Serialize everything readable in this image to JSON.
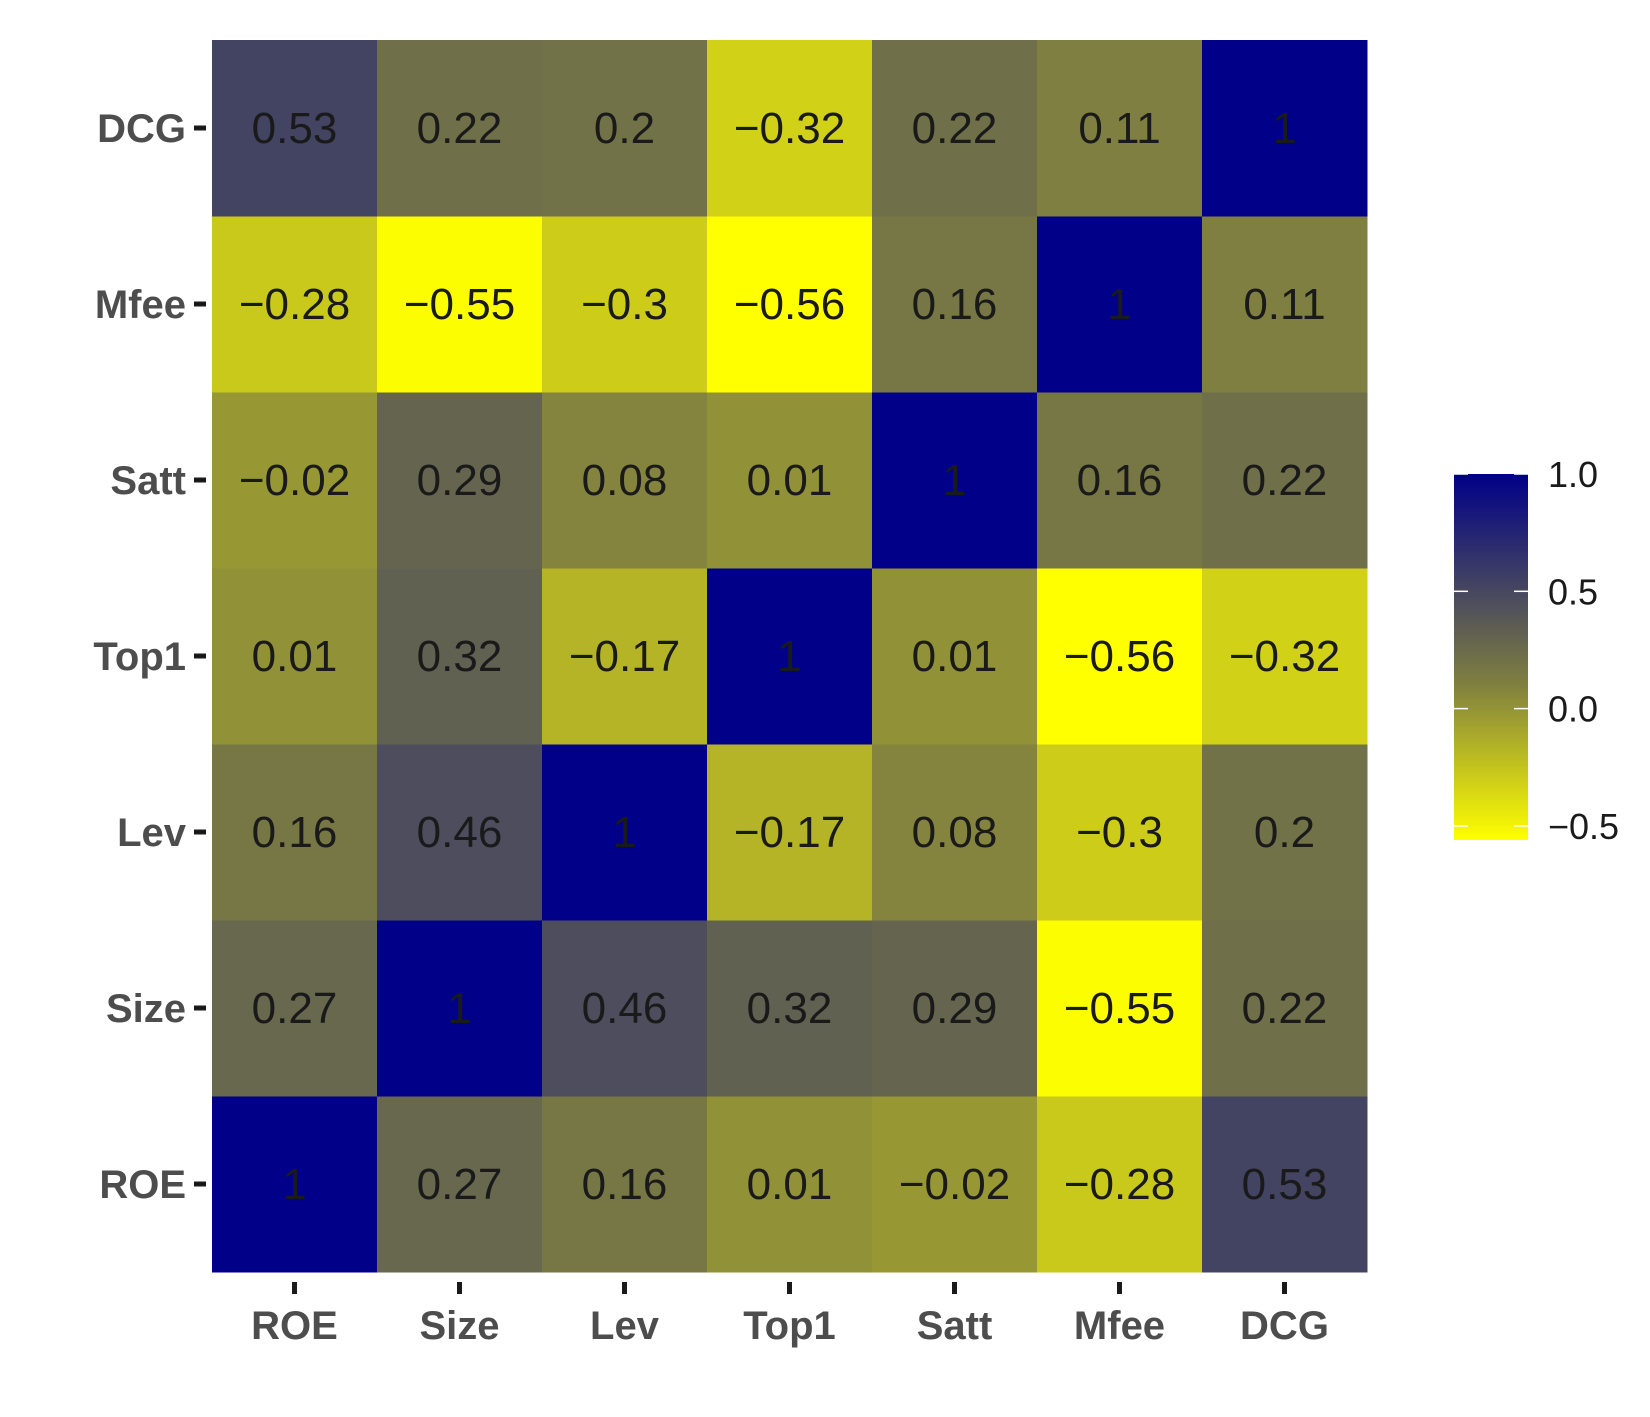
{
  "chart_data": {
    "type": "heatmap",
    "x_categories": [
      "ROE",
      "Size",
      "Lev",
      "Top1",
      "Satt",
      "Mfee",
      "DCG"
    ],
    "y_categories": [
      "ROE",
      "Size",
      "Lev",
      "Top1",
      "Satt",
      "Mfee",
      "DCG"
    ],
    "values": [
      [
        1,
        0.27,
        0.16,
        0.01,
        -0.02,
        -0.28,
        0.53
      ],
      [
        0.27,
        1,
        0.46,
        0.32,
        0.29,
        -0.55,
        0.22
      ],
      [
        0.16,
        0.46,
        1,
        -0.17,
        0.08,
        -0.3,
        0.2
      ],
      [
        0.01,
        0.32,
        -0.17,
        1,
        0.01,
        -0.56,
        -0.32
      ],
      [
        -0.02,
        0.29,
        0.08,
        0.01,
        1,
        0.16,
        0.22
      ],
      [
        -0.28,
        -0.55,
        -0.3,
        -0.56,
        0.16,
        1,
        0.11
      ],
      [
        0.53,
        0.22,
        0.2,
        -0.32,
        0.22,
        0.11,
        1
      ]
    ],
    "labels": [
      [
        "1",
        "0.27",
        "0.16",
        "0.01",
        "−0.02",
        "−0.28",
        "0.53"
      ],
      [
        "0.27",
        "1",
        "0.46",
        "0.32",
        "0.29",
        "−0.55",
        "0.22"
      ],
      [
        "0.16",
        "0.46",
        "1",
        "−0.17",
        "0.08",
        "−0.3",
        "0.2"
      ],
      [
        "0.01",
        "0.32",
        "−0.17",
        "1",
        "0.01",
        "−0.56",
        "−0.32"
      ],
      [
        "−0.02",
        "0.29",
        "0.08",
        "0.01",
        "1",
        "0.16",
        "0.22"
      ],
      [
        "−0.28",
        "−0.55",
        "−0.3",
        "−0.56",
        "0.16",
        "1",
        "0.11"
      ],
      [
        "0.53",
        "0.22",
        "0.2",
        "−0.32",
        "0.22",
        "0.11",
        "1"
      ]
    ],
    "color_scale": {
      "low": "#ffff00",
      "mid": "#808040",
      "high": "#000088",
      "min": -0.56,
      "midpoint": 0.1,
      "max": 1.0
    },
    "legend": {
      "position": "right",
      "breaks": [
        1.0,
        0.5,
        0.0,
        -0.5
      ],
      "break_labels": [
        "1.0",
        "0.5",
        "0.0",
        "−0.5"
      ]
    },
    "title": "",
    "xlabel": "",
    "ylabel": ""
  }
}
